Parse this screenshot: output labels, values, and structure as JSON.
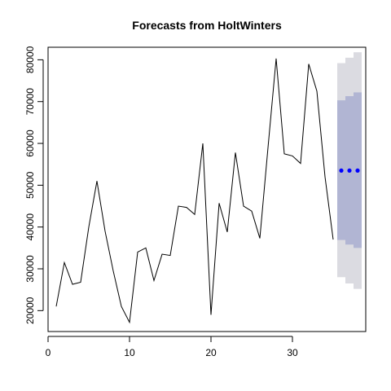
{
  "chart_data": {
    "type": "line",
    "title": "Forecasts from HoltWinters",
    "xlabel": "",
    "ylabel": "",
    "xlim": [
      0,
      39
    ],
    "ylim": [
      15000,
      83000
    ],
    "x_ticks": [
      0,
      10,
      20,
      30
    ],
    "y_ticks": [
      20000,
      30000,
      40000,
      50000,
      60000,
      70000,
      80000
    ],
    "y_tick_labels": [
      "20000",
      "30000",
      "40000",
      "50000",
      "60000",
      "70000",
      "80000"
    ],
    "grid": false,
    "legend": "none",
    "series": [
      {
        "role": "observed",
        "color": "#000000",
        "x": [
          1,
          2,
          3,
          4,
          5,
          6,
          7,
          8,
          9,
          10,
          11,
          12,
          13,
          14,
          15,
          16,
          17,
          18,
          19,
          20,
          21,
          22,
          23,
          24,
          25,
          26,
          27,
          28,
          29,
          30,
          31,
          32,
          33,
          34,
          35
        ],
        "y": [
          21000,
          31500,
          26300,
          26800,
          40000,
          51000,
          39000,
          29500,
          21000,
          17200,
          34000,
          35000,
          27200,
          33500,
          33200,
          45000,
          44700,
          43000,
          60000,
          19000,
          45700,
          38800,
          57800,
          45000,
          43800,
          37300,
          59000,
          80300,
          57500,
          57000,
          55200,
          79000,
          72500,
          52000,
          37000
        ]
      },
      {
        "role": "forecast",
        "color": "#0000ff",
        "x": [
          36,
          37,
          38
        ],
        "y": [
          53500,
          53500,
          53500
        ]
      }
    ],
    "intervals": [
      {
        "level": "95%",
        "color": "#dbdbe1",
        "x": [
          36,
          37,
          38
        ],
        "lower": [
          28000,
          26500,
          25200
        ],
        "upper": [
          79200,
          80500,
          81800
        ]
      },
      {
        "level": "80%",
        "color": "#b1b5d3",
        "x": [
          36,
          37,
          38
        ],
        "lower": [
          36900,
          35800,
          35000
        ],
        "upper": [
          70300,
          71300,
          72200
        ]
      }
    ]
  }
}
